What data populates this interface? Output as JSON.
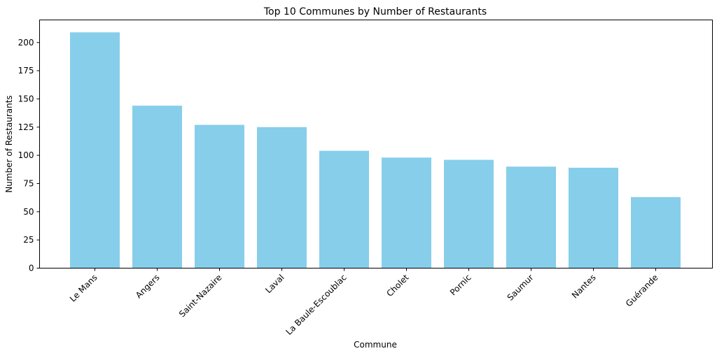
{
  "chart_data": {
    "type": "bar",
    "title": "Top 10 Communes by Number of Restaurants",
    "xlabel": "Commune",
    "ylabel": "Number of Restaurants",
    "categories": [
      "Le Mans",
      "Angers",
      "Saint-Nazaire",
      "Laval",
      "La Baule-Escoublac",
      "Cholet",
      "Pornic",
      "Saumur",
      "Nantes",
      "Guérande"
    ],
    "values": [
      209,
      144,
      127,
      125,
      104,
      98,
      96,
      90,
      89,
      63
    ],
    "ylim": [
      0,
      220
    ],
    "yticks": [
      0,
      25,
      50,
      75,
      100,
      125,
      150,
      175,
      200
    ],
    "bar_color": "#87CEEB",
    "grid": false,
    "x_tick_rotation": "45"
  }
}
